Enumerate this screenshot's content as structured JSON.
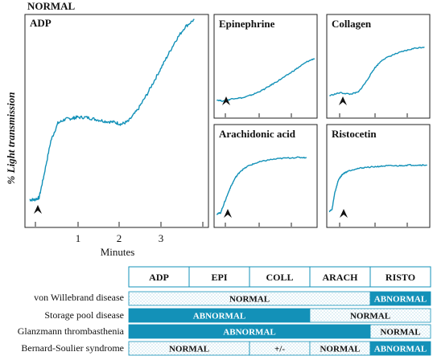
{
  "figure_title": "NORMAL",
  "accent_color": "#1391b8",
  "chart_data": [
    {
      "type": "line",
      "title": "ADP",
      "xlabel": "Minutes",
      "ylabel": "% Light transmission",
      "x_ticks": [
        "1",
        "2",
        "3"
      ],
      "xlim": [
        -0.1,
        3.8
      ],
      "ylim": [
        0,
        100
      ],
      "marker": "arrowhead",
      "series": [
        {
          "x": [
            0,
            0.1,
            0.2,
            0.3,
            0.45,
            0.6,
            0.75,
            0.9,
            1.0,
            1.2,
            1.4,
            1.6,
            1.8,
            1.95,
            2.1,
            2.3,
            2.5,
            2.7,
            2.9,
            3.1,
            3.3,
            3.5
          ],
          "y": [
            8,
            8,
            9,
            20,
            38,
            47,
            49,
            49.5,
            50,
            50,
            49,
            48,
            47.5,
            46.5,
            48,
            54,
            62,
            71,
            80,
            89,
            96,
            100
          ]
        }
      ]
    },
    {
      "type": "line",
      "title": "Epinephrine",
      "xlim": [
        -0.1,
        3.8
      ],
      "ylim": [
        0,
        100
      ],
      "marker": "arrowhead",
      "series": [
        {
          "x": [
            0,
            0.3,
            0.6,
            1.0,
            1.4,
            1.8,
            2.2,
            2.6,
            3.0,
            3.4,
            3.7
          ],
          "y": [
            12,
            10,
            14,
            15,
            20,
            27,
            36,
            45,
            55,
            65,
            70
          ]
        }
      ]
    },
    {
      "type": "line",
      "title": "Collagen",
      "xlim": [
        -0.1,
        3.8
      ],
      "ylim": [
        0,
        100
      ],
      "marker": "arrowhead",
      "series": [
        {
          "x": [
            0,
            0.4,
            0.8,
            1.1,
            1.4,
            1.7,
            2.0,
            2.4,
            2.8,
            3.2,
            3.6
          ],
          "y": [
            18,
            22,
            20,
            23,
            38,
            56,
            68,
            75,
            80,
            84,
            86
          ]
        }
      ]
    },
    {
      "type": "line",
      "title": "Arachidonic acid",
      "xlim": [
        -0.1,
        3.8
      ],
      "ylim": [
        0,
        100
      ],
      "marker": "arrowhead",
      "series": [
        {
          "x": [
            0,
            0.15,
            0.3,
            0.5,
            0.7,
            0.9,
            1.2,
            1.6,
            2.0,
            2.5,
            3.0,
            3.4
          ],
          "y": [
            8,
            10,
            24,
            42,
            56,
            65,
            72,
            77,
            80,
            82,
            83,
            83
          ]
        }
      ]
    },
    {
      "type": "line",
      "title": "Ristocetin",
      "xlim": [
        -0.1,
        3.8
      ],
      "ylim": [
        0,
        100
      ],
      "marker": "arrowhead",
      "series": [
        {
          "x": [
            0,
            0.1,
            0.2,
            0.35,
            0.5,
            0.7,
            1.0,
            1.4,
            1.8,
            2.2,
            2.6,
            3.0,
            3.4,
            3.7
          ],
          "y": [
            12,
            14,
            36,
            54,
            61,
            65,
            68,
            70,
            71,
            72,
            72,
            73,
            73,
            73
          ]
        }
      ]
    }
  ],
  "table": {
    "columns": [
      "ADP",
      "EPI",
      "COLL",
      "ARACH",
      "RISTO"
    ],
    "rows": [
      {
        "label": "von Willebrand disease",
        "segments": [
          {
            "span": [
              0,
              4
            ],
            "text": "NORMAL",
            "status": "normal"
          },
          {
            "span": [
              4,
              5
            ],
            "text": "ABNORMAL",
            "status": "abnormal"
          }
        ]
      },
      {
        "label": "Storage pool disease",
        "segments": [
          {
            "span": [
              0,
              3
            ],
            "text": "ABNORMAL",
            "status": "abnormal"
          },
          {
            "span": [
              3,
              5
            ],
            "text": "NORMAL",
            "status": "normal"
          }
        ]
      },
      {
        "label": "Glanzmann thrombasthenia",
        "segments": [
          {
            "span": [
              0,
              4
            ],
            "text": "ABNORMAL",
            "status": "abnormal"
          },
          {
            "span": [
              4,
              5
            ],
            "text": "NORMAL",
            "status": "normal"
          }
        ]
      },
      {
        "label": "Bernard-Soulier syndrome",
        "segments": [
          {
            "span": [
              0,
              2
            ],
            "text": "NORMAL",
            "status": "normal"
          },
          {
            "span": [
              2,
              3
            ],
            "text": "+/-",
            "status": "normal"
          },
          {
            "span": [
              3,
              4
            ],
            "text": "NORMAL",
            "status": "normal"
          },
          {
            "span": [
              4,
              5
            ],
            "text": "ABNORMAL",
            "status": "abnormal"
          }
        ]
      }
    ]
  }
}
